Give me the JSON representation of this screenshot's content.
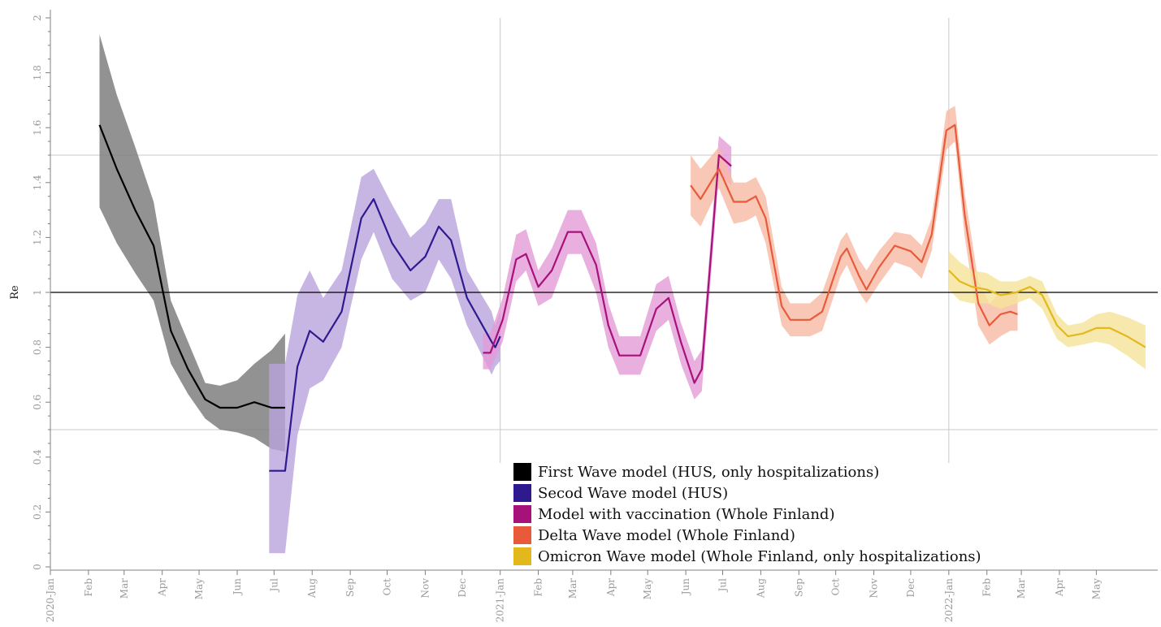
{
  "chart_data": {
    "type": "line",
    "title": "",
    "xlabel": "",
    "ylabel": "Re",
    "ylim": [
      0,
      2
    ],
    "xlim": [
      "2020-01-01",
      "2022-06-20"
    ],
    "y_ticks": [
      "0",
      "0.2",
      "0.4",
      "0.6",
      "0.8",
      "1",
      "1.2",
      "1.4",
      "1.6",
      "1.8",
      "2"
    ],
    "x_ticks": [
      {
        "date": "2020-01-01",
        "label": "2020-Jan"
      },
      {
        "date": "2020-02-01",
        "label": "Feb"
      },
      {
        "date": "2020-03-01",
        "label": "Mar"
      },
      {
        "date": "2020-04-01",
        "label": "Apr"
      },
      {
        "date": "2020-05-01",
        "label": "May"
      },
      {
        "date": "2020-06-01",
        "label": "Jun"
      },
      {
        "date": "2020-07-01",
        "label": "Jul"
      },
      {
        "date": "2020-08-01",
        "label": "Aug"
      },
      {
        "date": "2020-09-01",
        "label": "Sep"
      },
      {
        "date": "2020-10-01",
        "label": "Oct"
      },
      {
        "date": "2020-11-01",
        "label": "Nov"
      },
      {
        "date": "2020-12-01",
        "label": "Dec"
      },
      {
        "date": "2021-01-01",
        "label": "2021-Jan"
      },
      {
        "date": "2021-02-01",
        "label": "Feb"
      },
      {
        "date": "2021-03-01",
        "label": "Mar"
      },
      {
        "date": "2021-04-01",
        "label": "Apr"
      },
      {
        "date": "2021-05-01",
        "label": "May"
      },
      {
        "date": "2021-06-01",
        "label": "Jun"
      },
      {
        "date": "2021-07-01",
        "label": "Jul"
      },
      {
        "date": "2021-08-01",
        "label": "Aug"
      },
      {
        "date": "2021-09-01",
        "label": "Sep"
      },
      {
        "date": "2021-10-01",
        "label": "Oct"
      },
      {
        "date": "2021-11-01",
        "label": "Nov"
      },
      {
        "date": "2021-12-01",
        "label": "Dec"
      },
      {
        "date": "2022-01-01",
        "label": "2022-Jan"
      },
      {
        "date": "2022-02-01",
        "label": "Feb"
      },
      {
        "date": "2022-03-01",
        "label": "Mar"
      },
      {
        "date": "2022-04-01",
        "label": "Apr"
      },
      {
        "date": "2022-05-01",
        "label": "May"
      }
    ],
    "reference_lines": {
      "horizontal": [
        0.5,
        1.0,
        1.5
      ],
      "vertical": [
        "2021-01-01",
        "2022-01-01"
      ]
    },
    "legend_position": "bottom-center",
    "series": [
      {
        "name": "First Wave model (HUS, only hospitalizations)",
        "color": "#000000",
        "band_color": "#7f7f7f",
        "points": [
          [
            "2020-02-10",
            1.61,
            1.31,
            1.94
          ],
          [
            "2020-02-24",
            1.45,
            1.18,
            1.72
          ],
          [
            "2020-03-10",
            1.3,
            1.07,
            1.53
          ],
          [
            "2020-03-25",
            1.17,
            0.97,
            1.33
          ],
          [
            "2020-04-08",
            0.86,
            0.74,
            0.97
          ],
          [
            "2020-04-22",
            0.72,
            0.63,
            0.82
          ],
          [
            "2020-05-06",
            0.61,
            0.54,
            0.67
          ],
          [
            "2020-05-18",
            0.58,
            0.5,
            0.66
          ],
          [
            "2020-06-01",
            0.58,
            0.49,
            0.68
          ],
          [
            "2020-06-15",
            0.6,
            0.47,
            0.74
          ],
          [
            "2020-06-29",
            0.58,
            0.43,
            0.79
          ],
          [
            "2020-07-10",
            0.58,
            0.42,
            0.85
          ]
        ]
      },
      {
        "name": "Secod Wave model (HUS)",
        "color": "#2e1a8e",
        "band_color": "#b9a3dd",
        "points": [
          [
            "2020-06-27",
            0.35,
            0.05,
            0.74
          ],
          [
            "2020-07-10",
            0.35,
            0.05,
            0.74
          ],
          [
            "2020-07-20",
            0.73,
            0.48,
            0.99
          ],
          [
            "2020-07-30",
            0.86,
            0.65,
            1.08
          ],
          [
            "2020-08-10",
            0.82,
            0.68,
            0.98
          ],
          [
            "2020-08-25",
            0.93,
            0.8,
            1.08
          ],
          [
            "2020-09-10",
            1.27,
            1.12,
            1.42
          ],
          [
            "2020-09-20",
            1.34,
            1.22,
            1.45
          ],
          [
            "2020-10-05",
            1.18,
            1.05,
            1.32
          ],
          [
            "2020-10-20",
            1.08,
            0.97,
            1.2
          ],
          [
            "2020-11-01",
            1.13,
            1.0,
            1.25
          ],
          [
            "2020-11-12",
            1.24,
            1.12,
            1.34
          ],
          [
            "2020-11-22",
            1.19,
            1.05,
            1.34
          ],
          [
            "2020-12-05",
            0.98,
            0.88,
            1.08
          ],
          [
            "2020-12-25",
            0.82,
            0.7,
            0.93
          ],
          [
            "2020-12-28",
            0.8,
            0.73,
            0.88
          ],
          [
            "2021-01-01",
            0.84,
            0.75,
            0.93
          ]
        ]
      },
      {
        "name": "Model with vaccination (Whole Finland)",
        "color": "#a7117a",
        "band_color": "#e29bd7",
        "points": [
          [
            "2020-12-18",
            0.78,
            0.72,
            0.85
          ],
          [
            "2020-12-24",
            0.78,
            0.72,
            0.85
          ],
          [
            "2021-01-03",
            0.9,
            0.82,
            0.98
          ],
          [
            "2021-01-14",
            1.12,
            1.04,
            1.21
          ],
          [
            "2021-01-22",
            1.14,
            1.08,
            1.23
          ],
          [
            "2021-02-01",
            1.02,
            0.95,
            1.08
          ],
          [
            "2021-02-12",
            1.08,
            0.98,
            1.16
          ],
          [
            "2021-02-25",
            1.22,
            1.14,
            1.3
          ],
          [
            "2021-03-08",
            1.22,
            1.14,
            1.3
          ],
          [
            "2021-03-20",
            1.1,
            1.0,
            1.18
          ],
          [
            "2021-03-30",
            0.88,
            0.8,
            0.96
          ],
          [
            "2021-04-08",
            0.77,
            0.7,
            0.84
          ],
          [
            "2021-04-25",
            0.77,
            0.7,
            0.84
          ],
          [
            "2021-05-08",
            0.94,
            0.86,
            1.03
          ],
          [
            "2021-05-18",
            0.98,
            0.9,
            1.06
          ],
          [
            "2021-05-28",
            0.82,
            0.74,
            0.89
          ],
          [
            "2021-06-08",
            0.67,
            0.61,
            0.75
          ],
          [
            "2021-06-14",
            0.72,
            0.64,
            0.79
          ],
          [
            "2021-06-28",
            1.5,
            1.43,
            1.57
          ],
          [
            "2021-07-08",
            1.46,
            1.39,
            1.53
          ]
        ]
      },
      {
        "name": "Delta Wave model (Whole Finland)",
        "color": "#e85a3a",
        "band_color": "#f7b9a4",
        "points": [
          [
            "2021-06-05",
            1.39,
            1.28,
            1.5
          ],
          [
            "2021-06-13",
            1.34,
            1.24,
            1.45
          ],
          [
            "2021-06-28",
            1.45,
            1.38,
            1.53
          ],
          [
            "2021-07-10",
            1.33,
            1.25,
            1.4
          ],
          [
            "2021-07-20",
            1.33,
            1.26,
            1.4
          ],
          [
            "2021-07-28",
            1.35,
            1.28,
            1.42
          ],
          [
            "2021-08-05",
            1.27,
            1.18,
            1.35
          ],
          [
            "2021-08-18",
            0.95,
            0.88,
            1.02
          ],
          [
            "2021-08-25",
            0.9,
            0.84,
            0.96
          ],
          [
            "2021-09-10",
            0.9,
            0.84,
            0.96
          ],
          [
            "2021-09-20",
            0.93,
            0.86,
            1.0
          ],
          [
            "2021-10-05",
            1.13,
            1.06,
            1.19
          ],
          [
            "2021-10-10",
            1.16,
            1.1,
            1.22
          ],
          [
            "2021-10-20",
            1.06,
            1.0,
            1.12
          ],
          [
            "2021-10-26",
            1.01,
            0.96,
            1.08
          ],
          [
            "2021-11-05",
            1.09,
            1.03,
            1.15
          ],
          [
            "2021-11-18",
            1.17,
            1.11,
            1.22
          ],
          [
            "2021-12-01",
            1.15,
            1.09,
            1.21
          ],
          [
            "2021-12-10",
            1.11,
            1.05,
            1.17
          ],
          [
            "2021-12-18",
            1.21,
            1.15,
            1.27
          ],
          [
            "2021-12-30",
            1.59,
            1.52,
            1.66
          ],
          [
            "2022-01-06",
            1.61,
            1.55,
            1.68
          ],
          [
            "2022-01-14",
            1.28,
            1.2,
            1.36
          ],
          [
            "2022-01-25",
            0.96,
            0.88,
            1.04
          ],
          [
            "2022-02-03",
            0.88,
            0.81,
            0.96
          ],
          [
            "2022-02-12",
            0.92,
            0.84,
            1.0
          ],
          [
            "2022-02-20",
            0.93,
            0.86,
            1.0
          ],
          [
            "2022-02-26",
            0.92,
            0.86,
            1.0
          ]
        ]
      },
      {
        "name": "Omicron Wave model (Whole Finland, only hospitalizations)",
        "color": "#e3b81d",
        "band_color": "#f5e39a",
        "points": [
          [
            "2022-01-01",
            1.08,
            1.01,
            1.15
          ],
          [
            "2022-01-10",
            1.04,
            0.97,
            1.11
          ],
          [
            "2022-01-20",
            1.02,
            0.96,
            1.08
          ],
          [
            "2022-02-01",
            1.01,
            0.96,
            1.07
          ],
          [
            "2022-02-12",
            0.99,
            0.94,
            1.04
          ],
          [
            "2022-02-25",
            1.0,
            0.96,
            1.04
          ],
          [
            "2022-03-08",
            1.02,
            0.98,
            1.06
          ],
          [
            "2022-03-18",
            0.99,
            0.94,
            1.04
          ],
          [
            "2022-03-30",
            0.88,
            0.83,
            0.92
          ],
          [
            "2022-04-08",
            0.84,
            0.8,
            0.88
          ],
          [
            "2022-04-20",
            0.85,
            0.81,
            0.89
          ],
          [
            "2022-05-01",
            0.87,
            0.82,
            0.92
          ],
          [
            "2022-05-12",
            0.87,
            0.81,
            0.93
          ],
          [
            "2022-05-26",
            0.84,
            0.77,
            0.91
          ],
          [
            "2022-06-10",
            0.8,
            0.72,
            0.88
          ]
        ]
      }
    ]
  }
}
